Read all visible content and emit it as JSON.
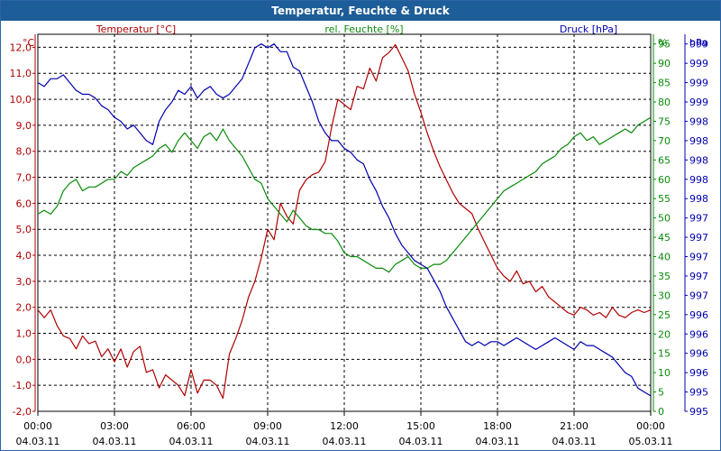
{
  "chart_data": {
    "type": "line",
    "title": "Temperatur, Feuchte & Druck",
    "legend": [
      {
        "name": "Temperatur [°C]",
        "color": "#b00000"
      },
      {
        "name": "rel. Feuchte [%]",
        "color": "#0a8a0a"
      },
      {
        "name": "Druck [hPa]",
        "color": "#0000b0"
      }
    ],
    "x_ticks": [
      {
        "time": "00:00",
        "date": "04.03.11"
      },
      {
        "time": "03:00",
        "date": "04.03.11"
      },
      {
        "time": "06:00",
        "date": "04.03.11"
      },
      {
        "time": "09:00",
        "date": "04.03.11"
      },
      {
        "time": "12:00",
        "date": "04.03.11"
      },
      {
        "time": "15:00",
        "date": "04.03.11"
      },
      {
        "time": "18:00",
        "date": "04.03.11"
      },
      {
        "time": "21:00",
        "date": "04.03.11"
      },
      {
        "time": "00:00",
        "date": "05.03.11"
      }
    ],
    "x_range_hours": [
      0,
      24
    ],
    "axes": {
      "temperature": {
        "unit": "°C",
        "min": -2,
        "max": 12.5,
        "ticks": [
          "-2,0",
          "-1,0",
          "0,0",
          "1,0",
          "2,0",
          "3,0",
          "4,0",
          "5,0",
          "6,0",
          "7,0",
          "8,0",
          "9,0",
          "10,0",
          "11,0",
          "12,0"
        ],
        "tick_values": [
          -2,
          -1,
          0,
          1,
          2,
          3,
          4,
          5,
          6,
          7,
          8,
          9,
          10,
          11,
          12
        ]
      },
      "humidity": {
        "unit": "%",
        "min": 0,
        "max": 97.5,
        "ticks": [
          "0",
          "5",
          "10",
          "15",
          "20",
          "25",
          "30",
          "35",
          "40",
          "45",
          "50",
          "55",
          "60",
          "65",
          "70",
          "75",
          "80",
          "85",
          "90",
          "95"
        ],
        "tick_values": [
          0,
          5,
          10,
          15,
          20,
          25,
          30,
          35,
          40,
          45,
          50,
          55,
          60,
          65,
          70,
          75,
          80,
          85,
          90,
          95
        ]
      },
      "pressure": {
        "unit": "hPa",
        "min": 995,
        "max": 999.85,
        "ticks": [
          "995",
          "995",
          "996",
          "996",
          "996",
          "996",
          "997",
          "997",
          "997",
          "997",
          "997",
          "998",
          "998",
          "998",
          "998",
          "998",
          "999",
          "999",
          "999",
          "999"
        ],
        "tick_positions_pct": [
          0,
          5,
          10,
          15,
          20,
          25,
          30,
          35,
          40,
          45,
          50,
          55,
          60,
          65,
          70,
          75,
          80,
          85,
          90,
          95
        ]
      }
    },
    "series": [
      {
        "name": "Temperatur",
        "axis": "temperature",
        "color": "#b00000",
        "x": [
          0,
          0.25,
          0.5,
          0.75,
          1,
          1.25,
          1.5,
          1.75,
          2,
          2.25,
          2.5,
          2.75,
          3,
          3.25,
          3.5,
          3.75,
          4,
          4.25,
          4.5,
          4.75,
          5,
          5.25,
          5.5,
          5.75,
          6,
          6.25,
          6.5,
          6.75,
          7,
          7.25,
          7.5,
          7.75,
          8,
          8.25,
          8.5,
          8.75,
          9,
          9.25,
          9.5,
          9.75,
          10,
          10.25,
          10.5,
          10.75,
          11,
          11.25,
          11.5,
          11.75,
          12,
          12.25,
          12.5,
          12.75,
          13,
          13.25,
          13.5,
          13.75,
          14,
          14.25,
          14.5,
          14.75,
          15,
          15.25,
          15.5,
          15.75,
          16,
          16.25,
          16.5,
          16.75,
          17,
          17.25,
          17.5,
          17.75,
          18,
          18.25,
          18.5,
          18.75,
          19,
          19.25,
          19.5,
          19.75,
          20,
          20.25,
          20.5,
          20.75,
          21,
          21.25,
          21.5,
          21.75,
          22,
          22.25,
          22.5,
          22.75,
          23,
          23.25,
          23.5,
          23.75,
          24
        ],
        "values": [
          1.9,
          1.6,
          1.9,
          1.3,
          0.9,
          0.8,
          0.4,
          0.9,
          0.6,
          0.7,
          0.1,
          0.4,
          -0.1,
          0.4,
          -0.3,
          0.3,
          0.5,
          -0.5,
          -0.4,
          -1.1,
          -0.6,
          -0.8,
          -1.0,
          -1.4,
          -0.4,
          -1.3,
          -0.8,
          -0.8,
          -1.0,
          -1.5,
          0.2,
          0.8,
          1.5,
          2.4,
          3.0,
          3.9,
          5.0,
          4.6,
          6.0,
          5.5,
          5.2,
          6.5,
          6.9,
          7.1,
          7.2,
          7.6,
          8.9,
          10.0,
          9.8,
          9.6,
          10.5,
          10.4,
          11.2,
          10.7,
          11.6,
          11.8,
          12.1,
          11.6,
          11.1,
          10.2,
          9.5,
          8.7,
          8.0,
          7.4,
          6.9,
          6.4,
          6.0,
          5.8,
          5.6,
          5.0,
          4.5,
          4.0,
          3.5,
          3.2,
          3.0,
          3.4,
          2.9,
          3.0,
          2.6,
          2.8,
          2.4,
          2.2,
          2.0,
          1.8,
          1.7,
          2.0,
          1.9,
          1.7,
          1.8,
          1.6,
          2.0,
          1.7,
          1.6,
          1.8,
          1.9,
          1.8,
          1.9
        ]
      },
      {
        "name": "rel. Feuchte",
        "axis": "humidity",
        "color": "#0a8a0a",
        "x": [
          0,
          0.25,
          0.5,
          0.75,
          1,
          1.25,
          1.5,
          1.75,
          2,
          2.25,
          2.5,
          2.75,
          3,
          3.25,
          3.5,
          3.75,
          4,
          4.25,
          4.5,
          4.75,
          5,
          5.25,
          5.5,
          5.75,
          6,
          6.25,
          6.5,
          6.75,
          7,
          7.25,
          7.5,
          7.75,
          8,
          8.25,
          8.5,
          8.75,
          9,
          9.25,
          9.5,
          9.75,
          10,
          10.25,
          10.5,
          10.75,
          11,
          11.25,
          11.5,
          11.75,
          12,
          12.25,
          12.5,
          12.75,
          13,
          13.25,
          13.5,
          13.75,
          14,
          14.25,
          14.5,
          14.75,
          15,
          15.25,
          15.5,
          15.75,
          16,
          16.25,
          16.5,
          16.75,
          17,
          17.25,
          17.5,
          17.75,
          18,
          18.25,
          18.5,
          18.75,
          19,
          19.25,
          19.5,
          19.75,
          20,
          20.25,
          20.5,
          20.75,
          21,
          21.25,
          21.5,
          21.75,
          22,
          22.25,
          22.5,
          22.75,
          23,
          23.25,
          23.5,
          23.75,
          24
        ],
        "values": [
          51,
          52,
          51,
          53,
          57,
          59,
          60,
          57,
          58,
          58,
          59,
          60,
          60,
          62,
          61,
          63,
          64,
          65,
          66,
          68,
          69,
          67,
          70,
          72,
          70,
          68,
          71,
          72,
          70,
          73,
          70,
          68,
          66,
          63,
          60,
          59,
          55,
          53,
          51,
          49,
          52,
          50,
          48,
          47,
          47,
          46,
          46,
          44,
          41,
          40,
          40,
          39,
          38,
          37,
          37,
          36,
          38,
          39,
          40,
          38,
          37,
          37,
          38,
          38,
          39,
          41,
          43,
          45,
          47,
          49,
          51,
          53,
          55,
          57,
          58,
          59,
          60,
          61,
          62,
          64,
          65,
          66,
          68,
          69,
          71,
          72,
          70,
          71,
          69,
          70,
          71,
          72,
          73,
          72,
          74,
          75,
          76
        ]
      },
      {
        "name": "Druck",
        "axis": "pressure_pct",
        "color": "#0000b0",
        "x": [
          0,
          0.25,
          0.5,
          0.75,
          1,
          1.25,
          1.5,
          1.75,
          2,
          2.25,
          2.5,
          2.75,
          3,
          3.25,
          3.5,
          3.75,
          4,
          4.25,
          4.5,
          4.75,
          5,
          5.25,
          5.5,
          5.75,
          6,
          6.25,
          6.5,
          6.75,
          7,
          7.25,
          7.5,
          7.75,
          8,
          8.25,
          8.5,
          8.75,
          9,
          9.25,
          9.5,
          9.75,
          10,
          10.25,
          10.5,
          10.75,
          11,
          11.25,
          11.5,
          11.75,
          12,
          12.25,
          12.5,
          12.75,
          13,
          13.25,
          13.5,
          13.75,
          14,
          14.25,
          14.5,
          14.75,
          15,
          15.25,
          15.5,
          15.75,
          16,
          16.25,
          16.5,
          16.75,
          17,
          17.25,
          17.5,
          17.75,
          18,
          18.25,
          18.5,
          18.75,
          19,
          19.25,
          19.5,
          19.75,
          20,
          20.25,
          20.5,
          20.75,
          21,
          21.25,
          21.5,
          21.75,
          22,
          22.25,
          22.5,
          22.75,
          23,
          23.25,
          23.5,
          23.75,
          24
        ],
        "values": [
          85,
          84,
          86,
          86,
          87,
          85,
          83,
          82,
          82,
          81,
          79,
          78,
          76,
          75,
          73,
          74,
          72,
          70,
          69,
          75,
          78,
          80,
          83,
          82,
          84,
          81,
          83,
          84,
          82,
          81,
          82,
          84,
          86,
          90,
          94,
          95,
          94,
          95,
          93,
          93,
          89,
          88,
          84,
          80,
          75,
          72,
          70,
          70,
          68,
          67,
          65,
          64,
          60,
          57,
          53,
          50,
          46,
          43,
          41,
          39,
          38,
          37,
          34,
          31,
          27,
          24,
          21,
          18,
          17,
          18,
          17,
          18,
          18,
          17,
          18,
          19,
          18,
          17,
          16,
          17,
          18,
          19,
          18,
          17,
          16,
          18,
          17,
          17,
          16,
          15,
          14,
          12,
          10,
          9,
          6,
          5,
          4
        ]
      }
    ]
  }
}
